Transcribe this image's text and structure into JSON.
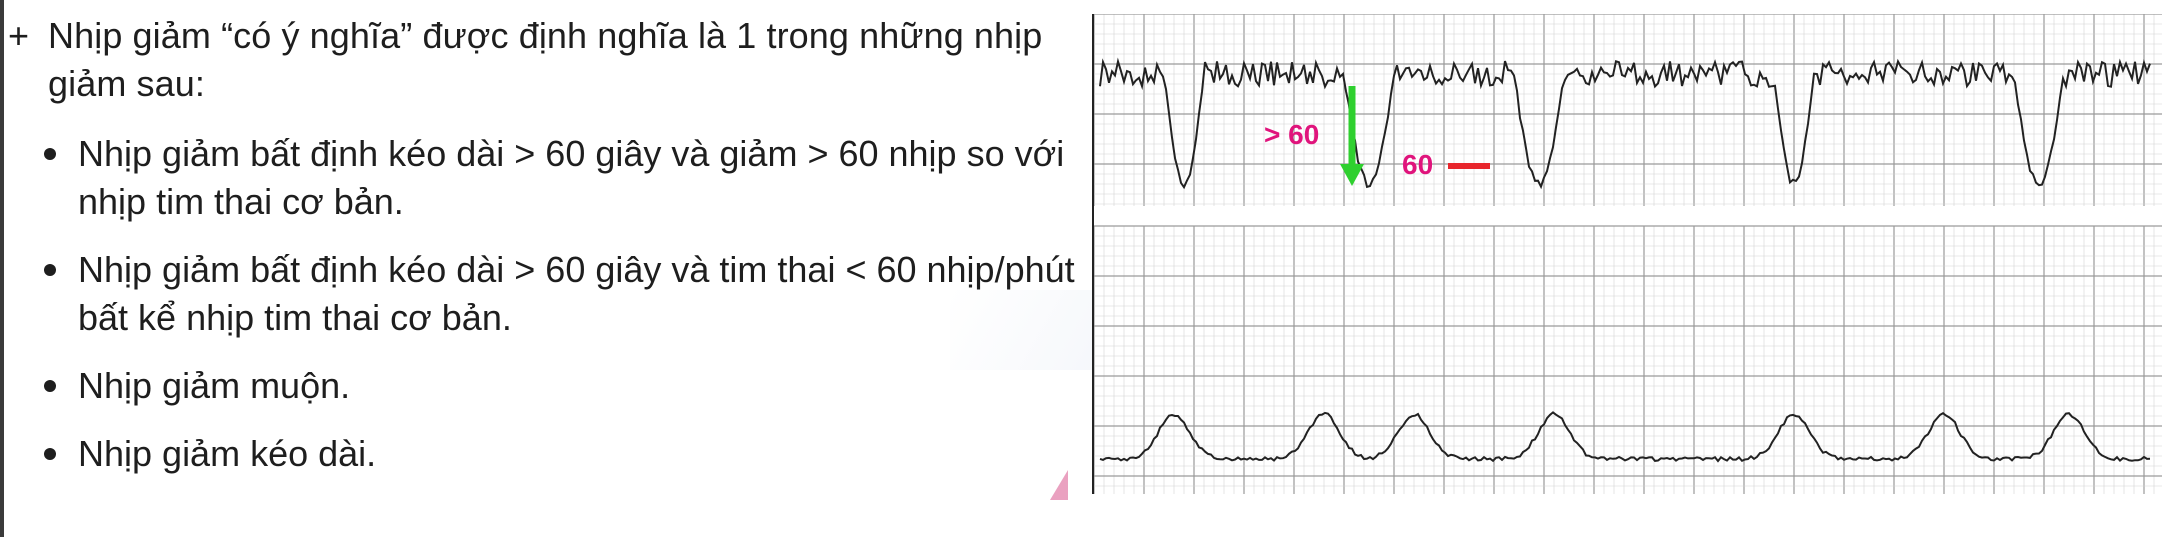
{
  "document": {
    "plus_sign": "+",
    "intro": "Nhịp giảm “có ý nghĩa” được định nghĩa là 1 trong những nhịp giảm sau:",
    "criteria": [
      "Nhịp giảm bất định kéo dài > 60 giây và giảm > 60 nhịp so với nhịp tim thai cơ bản.",
      "Nhịp giảm bất định kéo dài > 60 giây và tim thai < 60 nhịp/phút bất kể nhịp tim thai cơ bản.",
      "Nhịp giảm muộn.",
      "Nhịp giảm kéo dài."
    ]
  },
  "ctg": {
    "annotation_drop": "> 60",
    "annotation_level": "60",
    "colors": {
      "drop_arrow": "#2fd02f",
      "level_line": "#e8262d",
      "annotation_text": "#e0147c",
      "trace": "#222222"
    }
  }
}
